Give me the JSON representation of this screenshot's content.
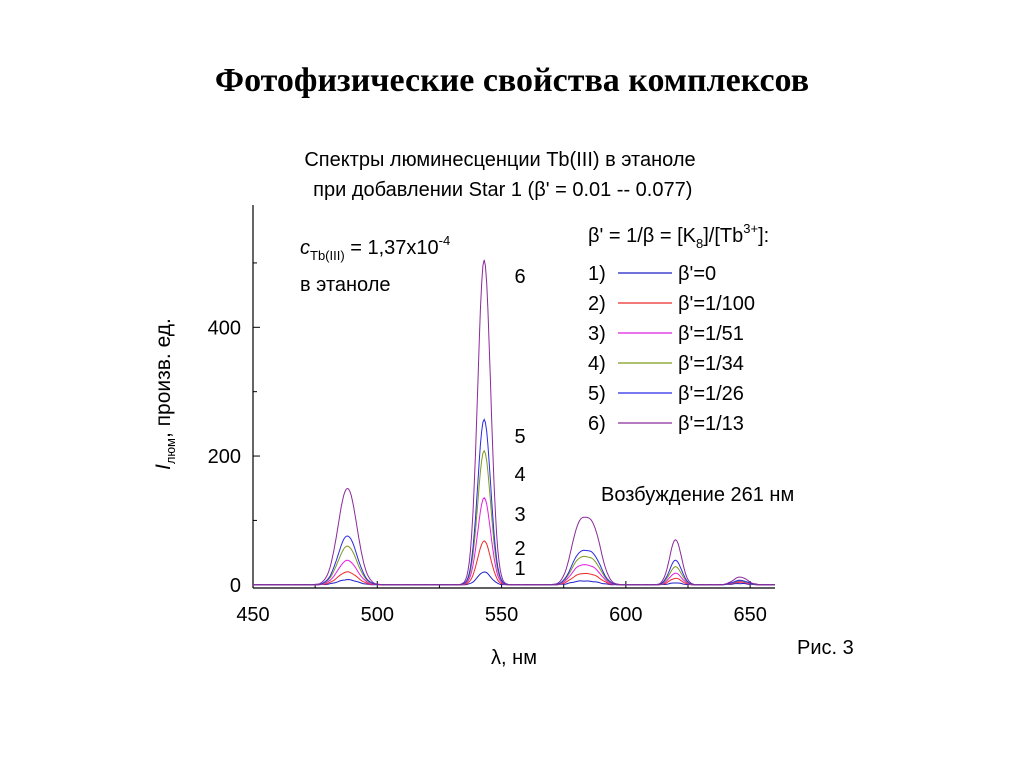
{
  "page": {
    "title": "Фотофизические свойства комплексов",
    "figure_caption": "Рис. 3"
  },
  "chart_data": {
    "type": "line",
    "title_lines": [
      "Спектры люминесценции Tb(III) в этаноле",
      " при добавлении Star 1 (β' = 0.01 -- 0.077)"
    ],
    "xlabel": "λ, нм",
    "ylabel_main": "I",
    "ylabel_sub": "люм",
    "ylabel_rest": ", произв. ед.",
    "xlim": [
      450,
      660
    ],
    "ylim": [
      -5,
      590
    ],
    "xticks": [
      450,
      500,
      550,
      600,
      650
    ],
    "yticks": [
      0,
      200,
      400
    ],
    "grid": false,
    "annotation": {
      "c_symbol": "c",
      "c_sub": "Tb(III)",
      "c_value": " = 1,37x10",
      "c_exp": "-4",
      "solvent": "в этаноле"
    },
    "legend_header": {
      "part1": "β' = 1/β = [K",
      "sub": "8",
      "part2": "]/[Tb",
      "sup": "3+",
      "part3": "]:"
    },
    "legend_position": "top-right",
    "excitation_note": "Возбуждение 261 нм",
    "peak_labels": [
      "1",
      "2",
      "3",
      "4",
      "5",
      "6"
    ],
    "peaks": [
      {
        "center": 488,
        "width": 3.8
      },
      {
        "center": 543,
        "width": 2.6
      },
      {
        "center": 581,
        "width": 3.2
      },
      {
        "center": 587,
        "width": 3.2
      },
      {
        "center": 620,
        "width": 2.4
      },
      {
        "center": 646,
        "width": 2.8
      }
    ],
    "series": [
      {
        "label_number": "1)",
        "name": "β'=0",
        "color": "#1f1fc8",
        "peak_heights": [
          8,
          20,
          5,
          4,
          3,
          2
        ]
      },
      {
        "label_number": "2)",
        "name": "β'=1/100",
        "color": "#ee2a2a",
        "peak_heights": [
          20,
          68,
          14,
          13,
          10,
          4
        ]
      },
      {
        "label_number": "3)",
        "name": "β'=1/51",
        "color": "#e21ee2",
        "peak_heights": [
          38,
          135,
          25,
          23,
          18,
          5
        ]
      },
      {
        "label_number": "4)",
        "name": "β'=1/34",
        "color": "#7d9a1e",
        "peak_heights": [
          60,
          208,
          35,
          33,
          28,
          6
        ]
      },
      {
        "label_number": "5)",
        "name": "β'=1/26",
        "color": "#2a2ae6",
        "peak_heights": [
          76,
          257,
          42,
          41,
          38,
          7
        ]
      },
      {
        "label_number": "6)",
        "name": "β'=1/13",
        "color": "#8a2a9a",
        "peak_heights": [
          150,
          505,
          83,
          80,
          70,
          12
        ]
      }
    ]
  }
}
